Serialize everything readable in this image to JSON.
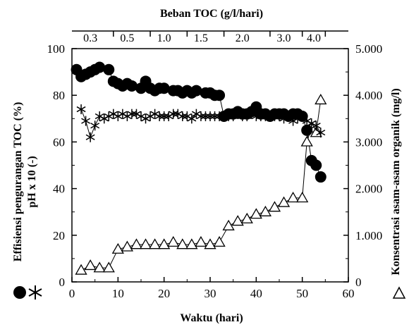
{
  "chart_data": {
    "type": "scatter",
    "title": "Beban TOC  (g/l/hari)",
    "xlabel": "Waktu  (hari)",
    "ylabel_left": "Effisiensi pengurangan TOC (%)",
    "ylabel_right": "Konsentrasi asam-asam organik (mg/l)",
    "xlim": [
      0,
      60
    ],
    "ylim_left": [
      0,
      100
    ],
    "ylim_right": [
      0,
      5000
    ],
    "x_ticks": [
      0,
      10,
      20,
      30,
      40,
      50,
      60
    ],
    "y_left_ticks": [
      0,
      20,
      40,
      60,
      80,
      100
    ],
    "y_right_ticks": [
      "0",
      "1.000",
      "2.000",
      "3.000",
      "4.000",
      "5.000"
    ],
    "top_axis": {
      "label": "Beban TOC  (g/l/hari)",
      "labels": [
        {
          "text": "0.3",
          "x": 4
        },
        {
          "text": "0.5",
          "x": 12
        },
        {
          "text": "1.0",
          "x": 20
        },
        {
          "text": "1.5",
          "x": 28
        },
        {
          "text": "2.0",
          "x": 37
        },
        {
          "text": "3.0",
          "x": 46
        },
        {
          "text": "4.0",
          "x": 52.5
        }
      ],
      "ticks": [
        9,
        17,
        25,
        33,
        43,
        50,
        55
      ]
    },
    "legend": {
      "left_line1": "●, Effisiensi pengurangan TOC (%)",
      "left_line2": "✱, pH x 10 (-)",
      "right": "△, Konsentrasi asam-asam organik (mg/l)"
    },
    "series": [
      {
        "name": "Effisiensi pengurangan TOC (%)",
        "marker": "filled-circle",
        "axis": "left",
        "x": [
          1,
          2,
          3,
          4,
          5,
          6,
          8,
          9,
          10,
          11,
          12,
          13,
          15,
          16,
          17,
          18,
          19,
          20,
          22,
          23,
          24,
          25,
          26,
          27,
          29,
          30,
          31,
          32,
          33,
          34,
          35,
          36,
          37,
          38,
          39,
          40,
          41,
          42,
          43,
          44,
          45,
          46,
          47,
          48,
          49,
          50,
          51,
          52,
          53,
          54
        ],
        "y": [
          91,
          88,
          89,
          90,
          91,
          92,
          91,
          86,
          85,
          84,
          85,
          84,
          83,
          86,
          83,
          82,
          83,
          83,
          82,
          82,
          81,
          82,
          81,
          82,
          81,
          81,
          80,
          80,
          71,
          72,
          72,
          73,
          72,
          72,
          73,
          75,
          72,
          72,
          71,
          72,
          72,
          72,
          71,
          72,
          72,
          71,
          65,
          52,
          50,
          45
        ],
        "color": "#000000"
      },
      {
        "name": "pH x 10 (-)",
        "marker": "asterisk",
        "axis": "left",
        "x": [
          2,
          3,
          4,
          5,
          6,
          7,
          8,
          9,
          10,
          11,
          12,
          13,
          14,
          15,
          16,
          17,
          18,
          19,
          20,
          21,
          22,
          23,
          24,
          25,
          26,
          27,
          28,
          29,
          30,
          31,
          32,
          33,
          34,
          35,
          36,
          37,
          38,
          39,
          40,
          41,
          42,
          43,
          44,
          45,
          46,
          47,
          48,
          49,
          50,
          51,
          52,
          53,
          54
        ],
        "y": [
          74,
          69,
          62,
          67,
          71,
          70,
          71,
          72,
          71,
          72,
          71,
          72,
          72,
          71,
          70,
          71,
          72,
          71,
          71,
          71,
          72,
          72,
          71,
          71,
          70,
          72,
          71,
          71,
          71,
          71,
          71,
          71,
          71,
          71,
          72,
          71,
          71,
          72,
          71,
          71,
          71,
          71,
          71,
          71,
          70,
          71,
          69,
          70,
          71,
          69,
          68,
          67,
          64
        ],
        "color": "#000000"
      },
      {
        "name": "Konsentrasi asam-asam organik (mg/l)",
        "marker": "open-triangle",
        "axis": "right",
        "x": [
          2,
          4,
          6,
          8,
          10,
          12,
          14,
          16,
          18,
          20,
          22,
          24,
          26,
          28,
          30,
          32,
          34,
          36,
          38,
          40,
          42,
          44,
          46,
          48,
          50,
          51,
          52,
          53,
          54
        ],
        "y": [
          250,
          350,
          300,
          300,
          700,
          750,
          800,
          800,
          800,
          800,
          850,
          800,
          800,
          850,
          800,
          850,
          1200,
          1300,
          1350,
          1450,
          1500,
          1600,
          1700,
          1800,
          1800,
          3000,
          3300,
          3200,
          3900
        ],
        "color": "#000000"
      }
    ],
    "grid": false
  }
}
